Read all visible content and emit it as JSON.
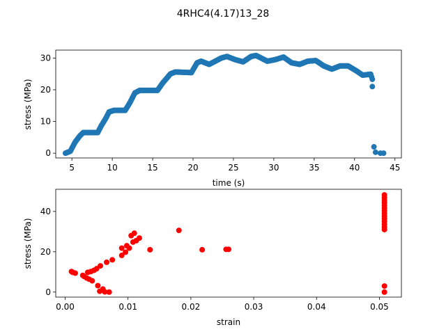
{
  "figure": {
    "title": "4RHC4(4.17)13_28"
  },
  "chart_data": [
    {
      "type": "scatter",
      "name": "stress-vs-time",
      "title": "",
      "xlabel": "time (s)",
      "ylabel": "stress (MPa)",
      "xlim": [
        3.0,
        45.8
      ],
      "ylim": [
        -1.5,
        32.5
      ],
      "xticks": [
        5,
        10,
        15,
        20,
        25,
        30,
        35,
        40,
        45
      ],
      "yticks": [
        0,
        10,
        20,
        30
      ],
      "color": "#1f77b4",
      "profile": [
        [
          4.2,
          0
        ],
        [
          4.8,
          0.6
        ],
        [
          5.4,
          3.5
        ],
        [
          6.0,
          5.5
        ],
        [
          6.4,
          6.5
        ],
        [
          7.0,
          6.5
        ],
        [
          8.2,
          6.5
        ],
        [
          8.6,
          8.5
        ],
        [
          9.2,
          11.0
        ],
        [
          9.6,
          13.0
        ],
        [
          10.2,
          13.5
        ],
        [
          11.6,
          13.5
        ],
        [
          12.2,
          16.0
        ],
        [
          12.8,
          19.0
        ],
        [
          13.4,
          19.8
        ],
        [
          15.6,
          19.8
        ],
        [
          16.2,
          22.0
        ],
        [
          17.2,
          25.0
        ],
        [
          17.8,
          25.6
        ],
        [
          19.8,
          25.4
        ],
        [
          20.5,
          28.5
        ],
        [
          21.0,
          29.0
        ],
        [
          22.0,
          28.0
        ],
        [
          23.5,
          30.0
        ],
        [
          24.2,
          30.5
        ],
        [
          25.2,
          29.5
        ],
        [
          26.2,
          28.8
        ],
        [
          27.2,
          30.5
        ],
        [
          27.8,
          30.8
        ],
        [
          29.2,
          29.0
        ],
        [
          30.2,
          29.5
        ],
        [
          31.2,
          30.3
        ],
        [
          32.2,
          28.5
        ],
        [
          33.2,
          28.0
        ],
        [
          34.2,
          29.0
        ],
        [
          35.2,
          29.2
        ],
        [
          36.2,
          27.5
        ],
        [
          37.2,
          26.5
        ],
        [
          38.2,
          27.5
        ],
        [
          39.2,
          27.5
        ],
        [
          40.2,
          26.0
        ],
        [
          41.0,
          24.6
        ],
        [
          42.0,
          24.9
        ],
        [
          42.2,
          23.3
        ]
      ],
      "extra_points": [
        [
          42.2,
          21.0
        ],
        [
          42.4,
          2.0
        ],
        [
          42.6,
          0.3
        ],
        [
          43.2,
          0.0
        ],
        [
          43.6,
          0.0
        ]
      ]
    },
    {
      "type": "scatter",
      "name": "stress-vs-strain",
      "title": "",
      "xlabel": "strain",
      "ylabel": "stress (MPa)",
      "xlim": [
        -0.0015,
        0.0535
      ],
      "ylim": [
        -2.5,
        51
      ],
      "xticks": [
        0.0,
        0.01,
        0.02,
        0.03,
        0.04,
        0.05
      ],
      "xticklabels": [
        "0.00",
        "0.01",
        "0.02",
        "0.03",
        "0.04",
        "0.05"
      ],
      "yticks": [
        0,
        20,
        40
      ],
      "color": "#ff0000",
      "points": [
        [
          0.001,
          10.2
        ],
        [
          0.0012,
          9.8
        ],
        [
          0.0016,
          9.4
        ],
        [
          0.0028,
          8.3
        ],
        [
          0.003,
          7.8
        ],
        [
          0.0034,
          7.0
        ],
        [
          0.0036,
          9.8
        ],
        [
          0.0038,
          6.4
        ],
        [
          0.0041,
          10.2
        ],
        [
          0.0043,
          5.6
        ],
        [
          0.0046,
          10.8
        ],
        [
          0.005,
          11.6
        ],
        [
          0.0052,
          3.2
        ],
        [
          0.0055,
          0.4
        ],
        [
          0.0056,
          13.0
        ],
        [
          0.006,
          1.5
        ],
        [
          0.0063,
          0.1
        ],
        [
          0.0066,
          14.8
        ],
        [
          0.007,
          0.0
        ],
        [
          0.0075,
          16.0
        ],
        [
          0.009,
          18.2
        ],
        [
          0.009,
          21.8
        ],
        [
          0.0096,
          19.8
        ],
        [
          0.0098,
          23.0
        ],
        [
          0.0102,
          21.8
        ],
        [
          0.0105,
          28.0
        ],
        [
          0.0108,
          24.8
        ],
        [
          0.011,
          29.2
        ],
        [
          0.0113,
          25.5
        ],
        [
          0.0118,
          26.8
        ],
        [
          0.0135,
          21.0
        ],
        [
          0.0181,
          30.6
        ],
        [
          0.0218,
          21.0
        ],
        [
          0.0256,
          21.2
        ],
        [
          0.026,
          21.2
        ],
        [
          0.0508,
          0.0
        ],
        [
          0.0508,
          3.0
        ],
        [
          0.0508,
          31.0
        ],
        [
          0.0508,
          32.2
        ],
        [
          0.0508,
          33.6
        ],
        [
          0.0508,
          35.0
        ],
        [
          0.0508,
          36.3
        ],
        [
          0.0508,
          37.6
        ],
        [
          0.0508,
          39.0
        ],
        [
          0.0508,
          40.4
        ],
        [
          0.0508,
          41.7
        ],
        [
          0.0508,
          43.0
        ],
        [
          0.0508,
          44.3
        ],
        [
          0.0508,
          45.5
        ],
        [
          0.0508,
          46.8
        ],
        [
          0.0508,
          48.2
        ]
      ]
    }
  ]
}
